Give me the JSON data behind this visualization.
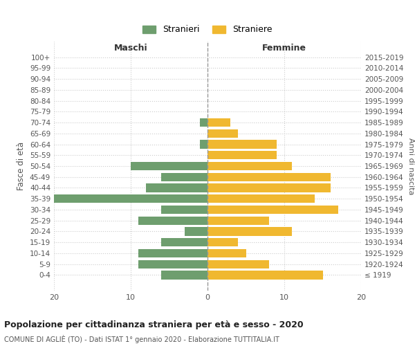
{
  "age_groups": [
    "100+",
    "95-99",
    "90-94",
    "85-89",
    "80-84",
    "75-79",
    "70-74",
    "65-69",
    "60-64",
    "55-59",
    "50-54",
    "45-49",
    "40-44",
    "35-39",
    "30-34",
    "25-29",
    "20-24",
    "15-19",
    "10-14",
    "5-9",
    "0-4"
  ],
  "birth_years": [
    "≤ 1919",
    "1920-1924",
    "1925-1929",
    "1930-1934",
    "1935-1939",
    "1940-1944",
    "1945-1949",
    "1950-1954",
    "1955-1959",
    "1960-1964",
    "1965-1969",
    "1970-1974",
    "1975-1979",
    "1980-1984",
    "1985-1989",
    "1990-1994",
    "1995-1999",
    "2000-2004",
    "2005-2009",
    "2010-2014",
    "2015-2019"
  ],
  "maschi": [
    0,
    0,
    0,
    0,
    0,
    0,
    1,
    0,
    1,
    0,
    10,
    6,
    8,
    20,
    6,
    9,
    3,
    6,
    9,
    9,
    6
  ],
  "femmine": [
    0,
    0,
    0,
    0,
    0,
    0,
    3,
    4,
    9,
    9,
    11,
    16,
    16,
    14,
    17,
    8,
    11,
    4,
    5,
    8,
    15
  ],
  "color_maschi": "#6e9e6e",
  "color_femmine": "#f0b830",
  "title": "Popolazione per cittadinanza straniera per età e sesso - 2020",
  "subtitle": "COMUNE DI AGLIÈ (TO) - Dati ISTAT 1° gennaio 2020 - Elaborazione TUTTITALIA.IT",
  "xlabel_left": "Maschi",
  "xlabel_right": "Femmine",
  "ylabel_left": "Fasce di età",
  "ylabel_right": "Anni di nascita",
  "legend_maschi": "Stranieri",
  "legend_femmine": "Straniere",
  "xlim": 20,
  "background_color": "#ffffff",
  "grid_color": "#cccccc"
}
